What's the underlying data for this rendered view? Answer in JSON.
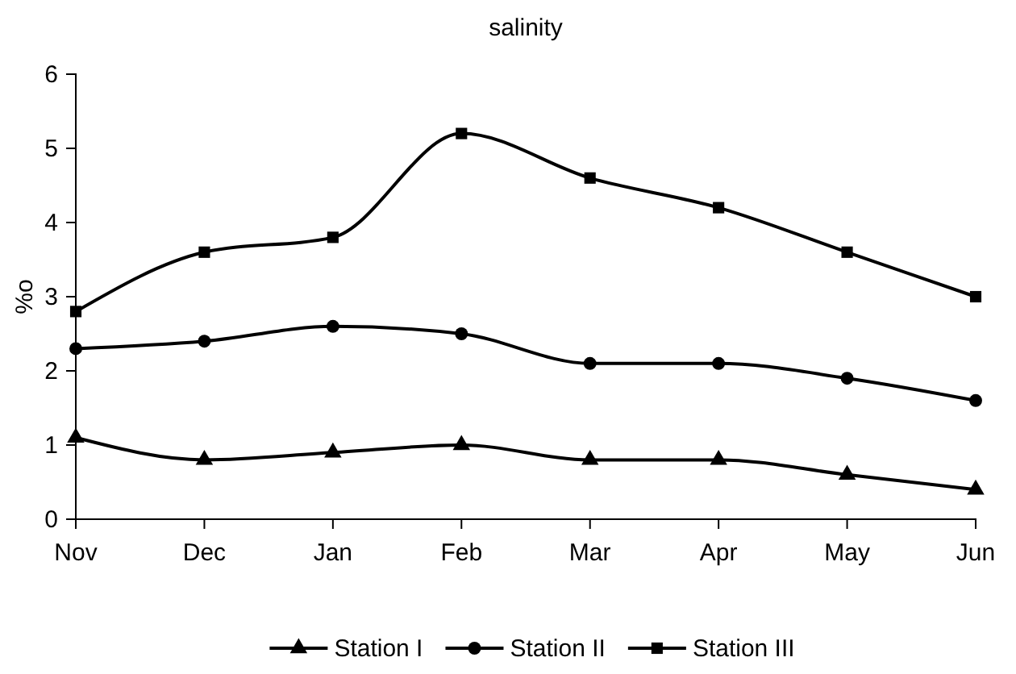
{
  "chart_data": {
    "type": "line",
    "title": "salinity",
    "ylabel": "%o",
    "categories": [
      "Nov",
      "Dec",
      "Jan",
      "Feb",
      "Mar",
      "Apr",
      "May",
      "Jun"
    ],
    "series": [
      {
        "name": "Station I",
        "color": "#000000",
        "marker": "triangle",
        "values": [
          1.1,
          0.8,
          0.9,
          1.0,
          0.8,
          0.8,
          0.6,
          0.4
        ]
      },
      {
        "name": "Station II",
        "color": "#000000",
        "marker": "circle",
        "values": [
          2.3,
          2.4,
          2.6,
          2.5,
          2.1,
          2.1,
          1.9,
          1.6
        ]
      },
      {
        "name": "Station III",
        "color": "#000000",
        "marker": "square",
        "values": [
          2.8,
          3.6,
          3.8,
          5.2,
          4.6,
          4.2,
          3.6,
          3.0
        ]
      }
    ],
    "ylim": [
      0,
      6
    ],
    "yticks": [
      0,
      1,
      2,
      3,
      4,
      5,
      6
    ],
    "grid": false,
    "legend": "bottom",
    "line_style": "solid"
  }
}
